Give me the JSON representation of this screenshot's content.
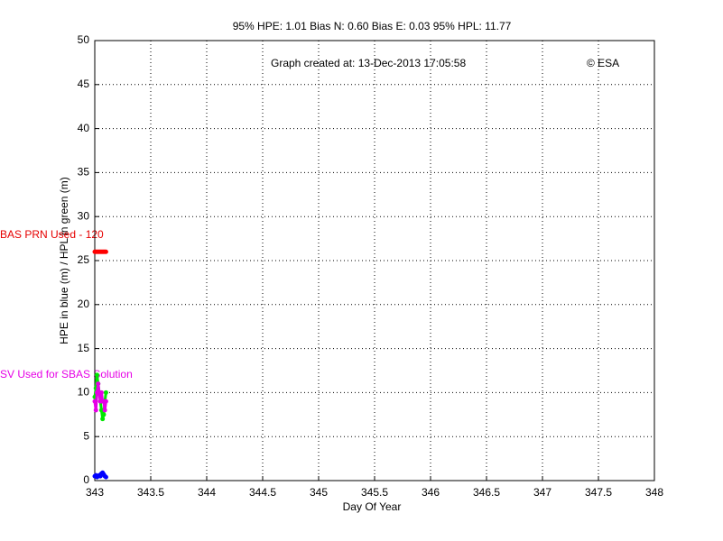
{
  "chart_data": {
    "type": "line",
    "title": "95% HPE: 1.01  Bias N: 0.60  Bias E: 0.03  95% HPL: 11.77",
    "annotation": "Graph created at: 13-Dec-2013 17:05:58",
    "copyright": "© ESA",
    "prn_label": "BAS PRN Used - 120",
    "sv_label": "SV Used for SBAS Solution",
    "xlabel": "Day Of Year",
    "ylabel": "HPE in blue (m) / HPL in green (m)",
    "x": [
      343.0,
      343.01,
      343.02,
      343.03,
      343.04,
      343.05,
      343.06,
      343.07,
      343.08,
      343.09,
      343.1
    ],
    "series": [
      {
        "color": "#ff0000",
        "values": [
          26,
          26,
          26,
          26,
          26,
          26,
          26,
          26,
          26,
          26,
          26
        ]
      },
      {
        "color": "#00e600",
        "values": [
          9.5,
          10.5,
          12,
          11,
          10,
          9,
          8,
          7,
          7.5,
          9,
          10
        ]
      },
      {
        "color": "#e600e6",
        "values": [
          9,
          8,
          10,
          11,
          10,
          9,
          10,
          9,
          9,
          8,
          9
        ]
      },
      {
        "color": "#0000ff",
        "values": [
          0.5,
          0.6,
          0.4,
          0.5,
          0.6,
          0.5,
          0.8,
          0.9,
          0.7,
          0.5,
          0.4
        ]
      }
    ],
    "xlim": [
      343,
      348
    ],
    "xticks": [
      343,
      343.5,
      344,
      344.5,
      345,
      345.5,
      346,
      346.5,
      347,
      347.5,
      348
    ],
    "ylim": [
      0,
      50
    ],
    "yticks": [
      0,
      5,
      10,
      15,
      20,
      25,
      30,
      35,
      40,
      45,
      50
    ],
    "grid": true
  }
}
